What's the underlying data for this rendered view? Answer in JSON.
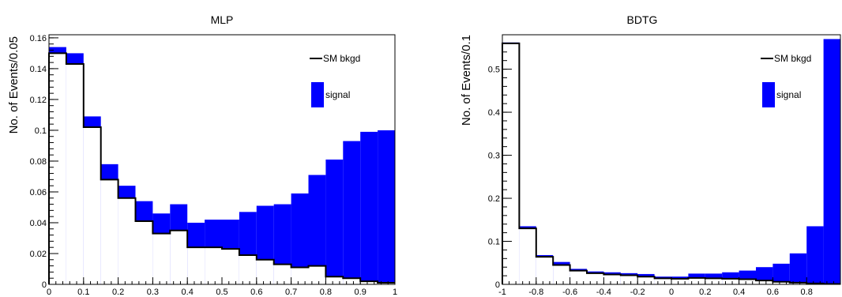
{
  "colors": {
    "signal": "#0000ff",
    "background_line": "#000000",
    "frame": "#000000"
  },
  "chart_data": [
    {
      "type": "histogram",
      "title": "MLP",
      "ylabel": "No. of Events/0.05",
      "xlabel": "",
      "xlim": [
        0,
        1
      ],
      "ylim": [
        0,
        0.162
      ],
      "grid": false,
      "legend_placement": "top-right",
      "bin_edges": [
        0,
        0.05,
        0.1,
        0.15,
        0.2,
        0.25,
        0.3,
        0.35,
        0.4,
        0.45,
        0.5,
        0.55,
        0.6,
        0.65,
        0.7,
        0.75,
        0.8,
        0.85,
        0.9,
        0.95,
        1.0
      ],
      "x_ticks": [
        "0",
        "0.1",
        "0.2",
        "0.3",
        "0.4",
        "0.5",
        "0.6",
        "0.7",
        "0.8",
        "0.9",
        "1"
      ],
      "x_tick_values": [
        0,
        0.1,
        0.2,
        0.3,
        0.4,
        0.5,
        0.6,
        0.7,
        0.8,
        0.9,
        1.0
      ],
      "y_ticks": [
        "0",
        "0.02",
        "0.04",
        "0.06",
        "0.08",
        "0.1",
        "0.12",
        "0.14",
        "0.16"
      ],
      "y_tick_values": [
        0,
        0.02,
        0.04,
        0.06,
        0.08,
        0.1,
        0.12,
        0.14,
        0.16
      ],
      "series": [
        {
          "name": "SM bkgd",
          "style": "line",
          "values": [
            0.15,
            0.143,
            0.102,
            0.068,
            0.056,
            0.041,
            0.033,
            0.035,
            0.024,
            0.024,
            0.023,
            0.019,
            0.016,
            0.013,
            0.011,
            0.012,
            0.005,
            0.004,
            0.002,
            0.001
          ]
        },
        {
          "name": "signal",
          "style": "fill",
          "values": [
            0.154,
            0.15,
            0.109,
            0.078,
            0.064,
            0.054,
            0.046,
            0.052,
            0.04,
            0.042,
            0.042,
            0.047,
            0.051,
            0.052,
            0.059,
            0.071,
            0.081,
            0.093,
            0.099,
            0.1
          ]
        }
      ]
    },
    {
      "type": "histogram",
      "title": "BDTG",
      "ylabel": "No. of Events/0.1",
      "xlabel": "",
      "xlim": [
        -1,
        1
      ],
      "ylim": [
        0,
        0.58
      ],
      "grid": false,
      "legend_placement": "top-right",
      "bin_edges": [
        -1,
        -0.9,
        -0.8,
        -0.7,
        -0.6,
        -0.5,
        -0.4,
        -0.3,
        -0.2,
        -0.1,
        0,
        0.1,
        0.2,
        0.3,
        0.4,
        0.5,
        0.6,
        0.7,
        0.8,
        0.9,
        1.0
      ],
      "x_ticks": [
        "-1",
        "-0.8",
        "-0.6",
        "-0.4",
        "-0.2",
        "0",
        "0.2",
        "0.4",
        "0.6",
        "0.8"
      ],
      "x_tick_values": [
        -1,
        -0.8,
        -0.6,
        -0.4,
        -0.2,
        0,
        0.2,
        0.4,
        0.6,
        0.8
      ],
      "y_ticks": [
        "0",
        "0.1",
        "0.2",
        "0.3",
        "0.4",
        "0.5"
      ],
      "y_tick_values": [
        0,
        0.1,
        0.2,
        0.3,
        0.4,
        0.5
      ],
      "series": [
        {
          "name": "SM bkgd",
          "style": "line",
          "values": [
            0.56,
            0.13,
            0.064,
            0.045,
            0.032,
            0.026,
            0.023,
            0.021,
            0.018,
            0.014,
            0.013,
            0.015,
            0.014,
            0.013,
            0.012,
            0.009,
            0.006,
            0.004,
            0.002,
            0.001
          ]
        },
        {
          "name": "signal",
          "style": "fill",
          "values": [
            0.562,
            0.135,
            0.068,
            0.052,
            0.036,
            0.03,
            0.028,
            0.026,
            0.024,
            0.018,
            0.018,
            0.025,
            0.025,
            0.028,
            0.032,
            0.04,
            0.048,
            0.072,
            0.135,
            0.57
          ]
        }
      ]
    }
  ]
}
